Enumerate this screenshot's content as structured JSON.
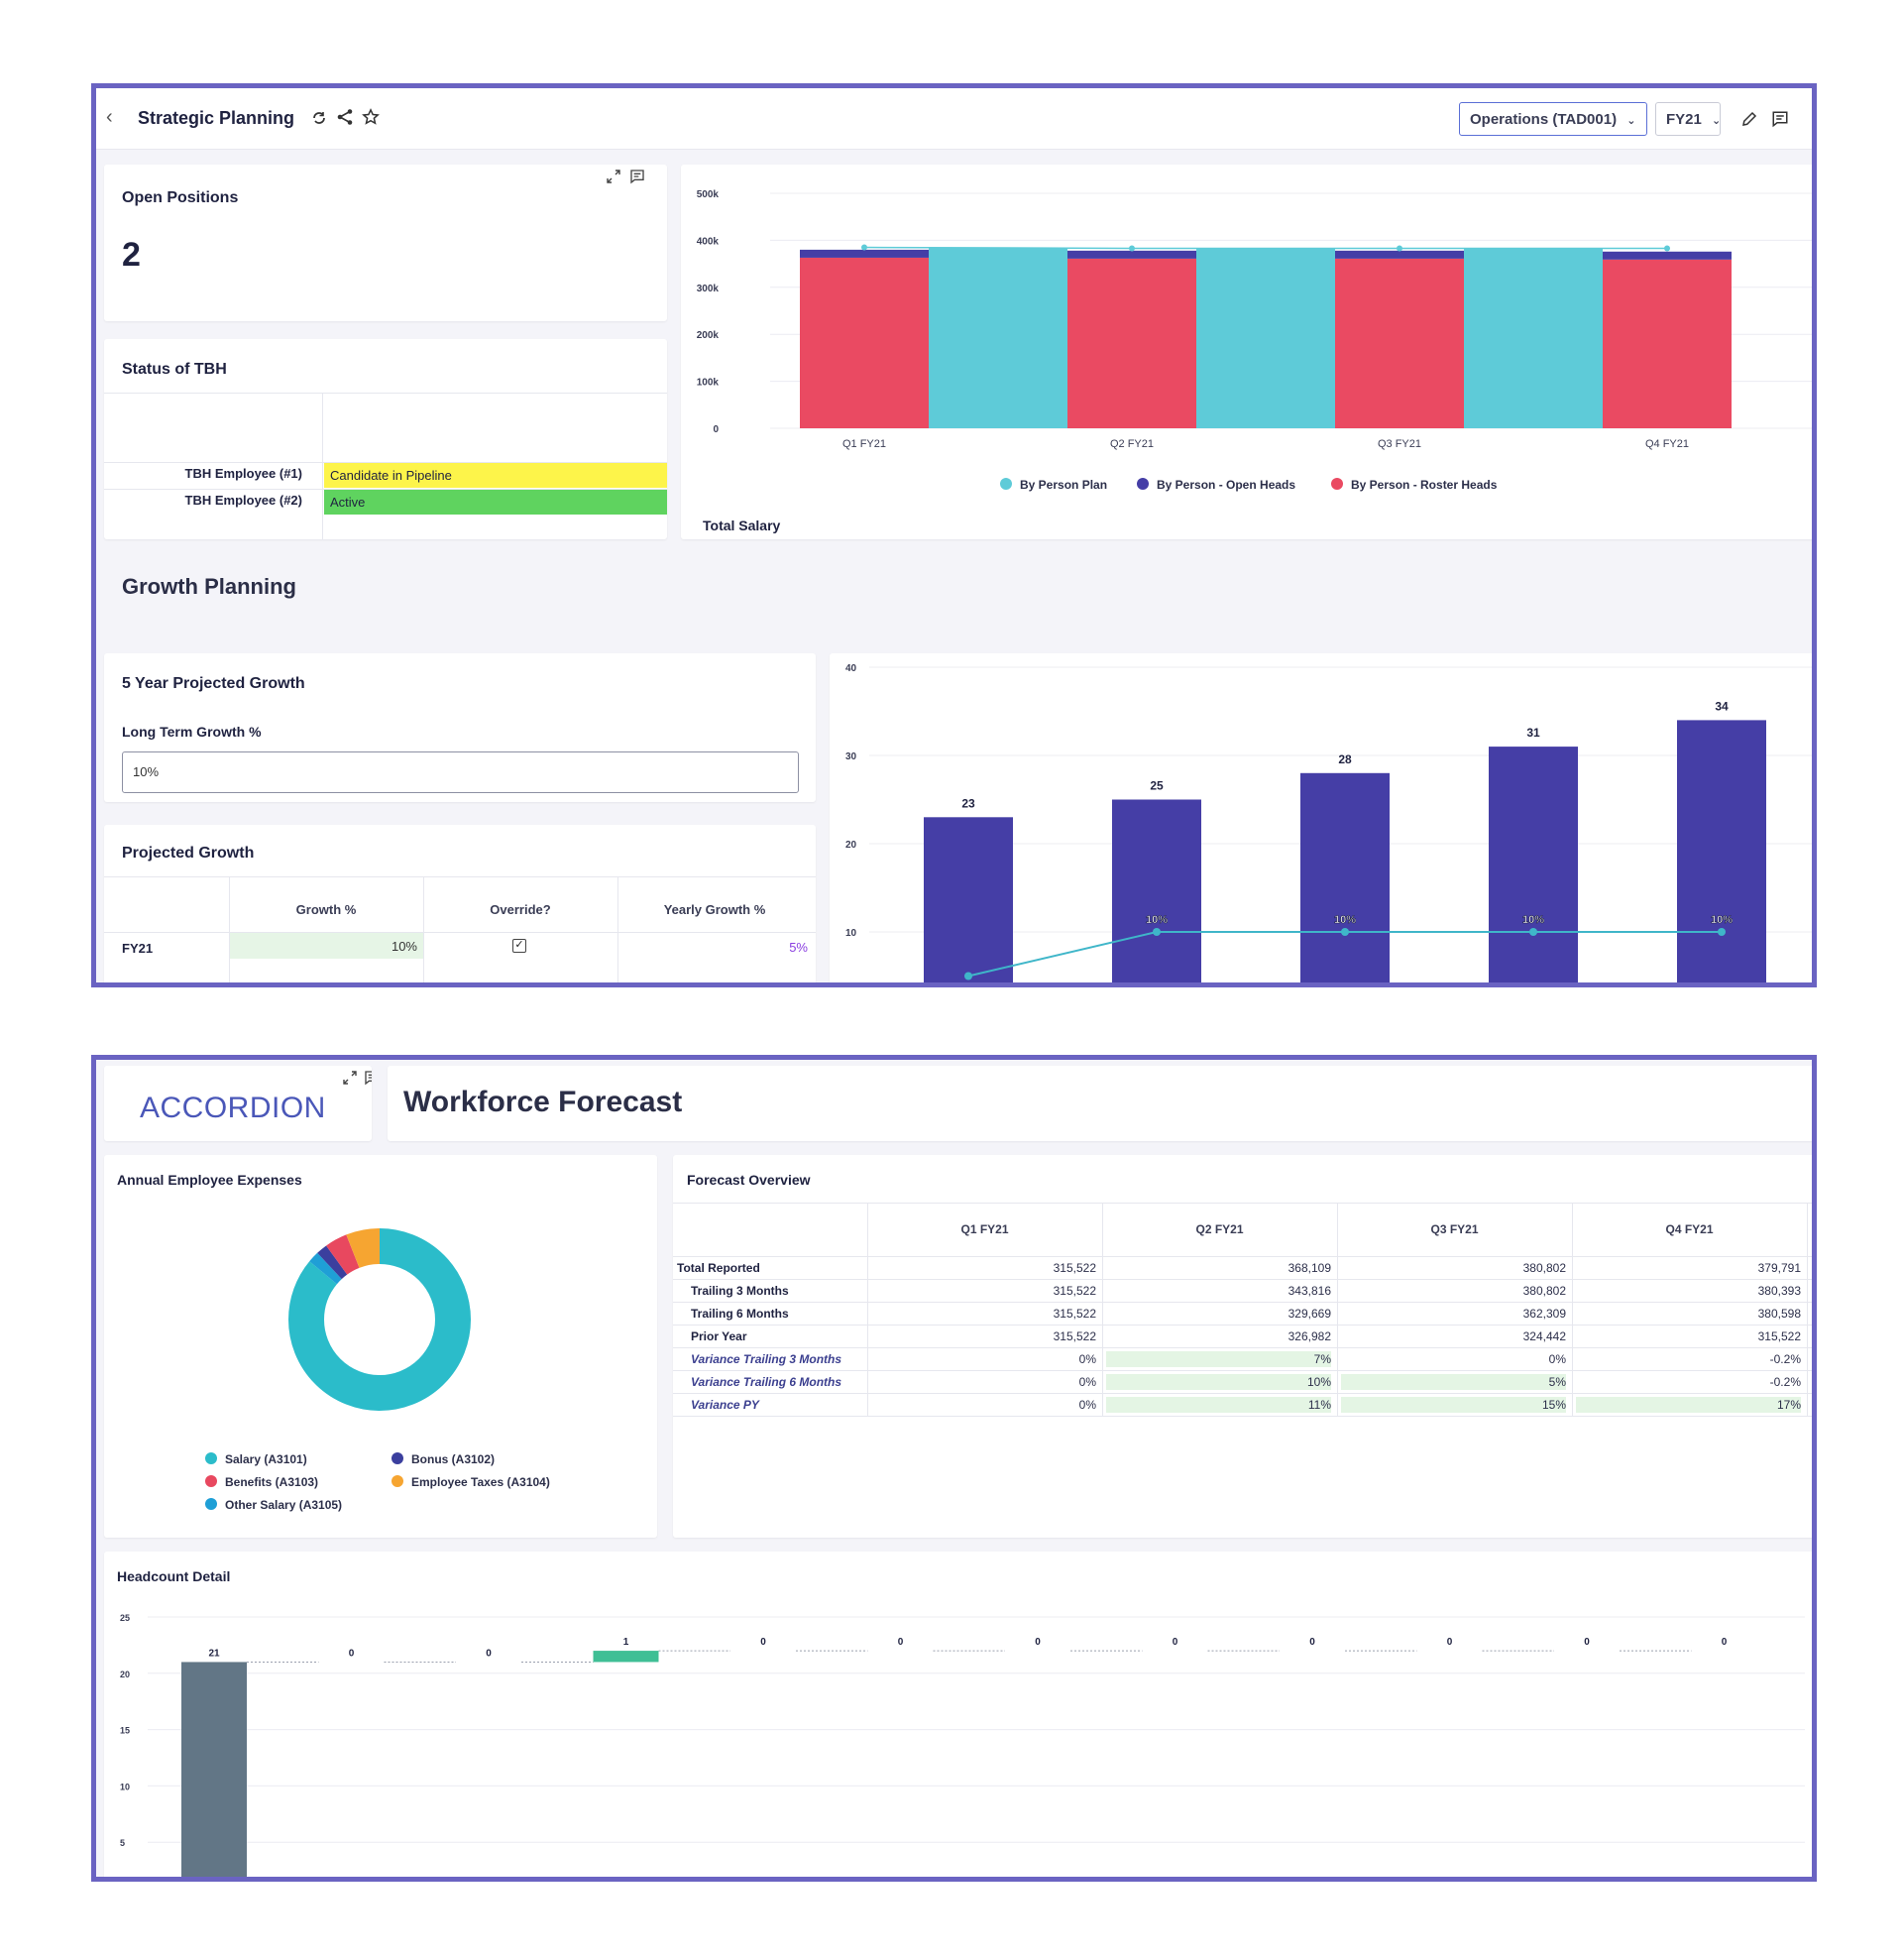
{
  "top": {
    "title": "Strategic Planning",
    "entity_dropdown": "Operations (TAD001)",
    "period_dropdown": "FY21"
  },
  "open_positions": {
    "title": "Open Positions",
    "value": "2"
  },
  "status_tbh": {
    "title": "Status of TBH",
    "rows": [
      {
        "label": "TBH Employee (#1)",
        "status": "Candidate in Pipeline",
        "color": "#fdf44a"
      },
      {
        "label": "TBH Employee (#2)",
        "status": "Active",
        "color": "#5fd35f"
      }
    ]
  },
  "growth_section": {
    "title": "Growth Planning"
  },
  "five_year": {
    "title": "5 Year Projected Growth",
    "field_label": "Long Term Growth %",
    "field_value": "10%"
  },
  "projected_growth": {
    "title": "Projected Growth",
    "headers": [
      "Growth %",
      "Override?",
      "Yearly Growth %"
    ],
    "rows": [
      {
        "label": "FY21",
        "growth": "10%",
        "override": true,
        "yearly": "5%"
      }
    ]
  },
  "colors": {
    "teal": "#5ecbd8",
    "navy": "#453ea6",
    "red": "#ea4a62",
    "frame": "#6a63c2",
    "accent_purple": "#8a3fe0"
  },
  "chart_data": [
    {
      "type": "bar",
      "title": "Total Salary",
      "categories": [
        "Q1 FY21",
        "Q2 FY21",
        "Q3 FY21",
        "Q4 FY21"
      ],
      "y_ticks": [
        "500k",
        "400k",
        "300k",
        "200k",
        "100k",
        "0"
      ],
      "ylim": [
        0,
        500000
      ],
      "series": [
        {
          "name": "By Person Plan",
          "color": "#5ecbd8",
          "values": [
            385000,
            383000,
            383000,
            383000
          ]
        },
        {
          "name": "By Person - Open Heads",
          "color": "#453ea6",
          "values": [
            17000,
            17000,
            17000,
            17000
          ]
        },
        {
          "name": "By Person - Roster Heads",
          "color": "#ea4a62",
          "values": [
            363000,
            361000,
            361000,
            359000
          ]
        }
      ],
      "legend": "bottom",
      "grid": true
    },
    {
      "type": "bar",
      "title": "",
      "categories": [
        "",
        "",
        "",
        "",
        ""
      ],
      "y_ticks": [
        "40",
        "30",
        "20",
        "10"
      ],
      "ylim": [
        0,
        40
      ],
      "series": [
        {
          "name": "",
          "color": "#453ea6",
          "values": [
            23,
            25,
            28,
            31,
            34
          ]
        },
        {
          "name": "",
          "color": "#3fb6c9",
          "values": [
            5,
            10,
            10,
            10,
            10
          ],
          "labels": [
            "",
            "10%",
            "10%",
            "10%",
            "10%"
          ]
        }
      ],
      "grid": true
    },
    {
      "type": "pie",
      "title": "Annual Employee Expenses",
      "series": [
        {
          "name": "Salary (A3101)",
          "color": "#2bbcca",
          "value": 86
        },
        {
          "name": "Bonus (A3102)",
          "color": "#3b3f9e",
          "value": 2
        },
        {
          "name": "Benefits (A3103)",
          "color": "#e8485f",
          "value": 4
        },
        {
          "name": "Employee Taxes (A3104)",
          "color": "#f6a531",
          "value": 6
        },
        {
          "name": "Other Salary (A3105)",
          "color": "#1f9fd6",
          "value": 2
        }
      ],
      "legend": "bottom"
    },
    {
      "type": "bar",
      "title": "Headcount Detail",
      "y_ticks": [
        "25",
        "20",
        "15",
        "10",
        "5"
      ],
      "ylim": [
        0,
        25
      ],
      "values": [
        21,
        0,
        0,
        1,
        0,
        0,
        0,
        0,
        0,
        0,
        0,
        0
      ],
      "colors": [
        "#627686",
        "",
        "",
        "#3fbf95",
        "",
        "",
        "",
        "",
        "",
        "",
        "",
        ""
      ],
      "grid": true
    }
  ],
  "brand": {
    "logo_text": "ACCORDION"
  },
  "workforce": {
    "title": "Workforce Forecast"
  },
  "forecast_overview": {
    "title": "Forecast Overview",
    "columns": [
      "Q1 FY21",
      "Q2 FY21",
      "Q3 FY21",
      "Q4 FY21"
    ],
    "rows": [
      {
        "label": "Total Reported",
        "values": [
          "315,522",
          "368,109",
          "380,802",
          "379,791"
        ]
      },
      {
        "label": "Trailing 3 Months",
        "values": [
          "315,522",
          "343,816",
          "380,802",
          "380,393"
        ]
      },
      {
        "label": "Trailing 6 Months",
        "values": [
          "315,522",
          "329,669",
          "362,309",
          "380,598"
        ]
      },
      {
        "label": "Prior Year",
        "values": [
          "315,522",
          "326,982",
          "324,442",
          "315,522"
        ]
      },
      {
        "label": "Variance Trailing 3 Months",
        "values": [
          "0%",
          "7%",
          "0%",
          "-0.2%"
        ]
      },
      {
        "label": "Variance Trailing 6 Months",
        "values": [
          "0%",
          "10%",
          "5%",
          "-0.2%"
        ]
      },
      {
        "label": "Variance PY",
        "values": [
          "0%",
          "11%",
          "15%",
          "17%"
        ]
      }
    ]
  }
}
